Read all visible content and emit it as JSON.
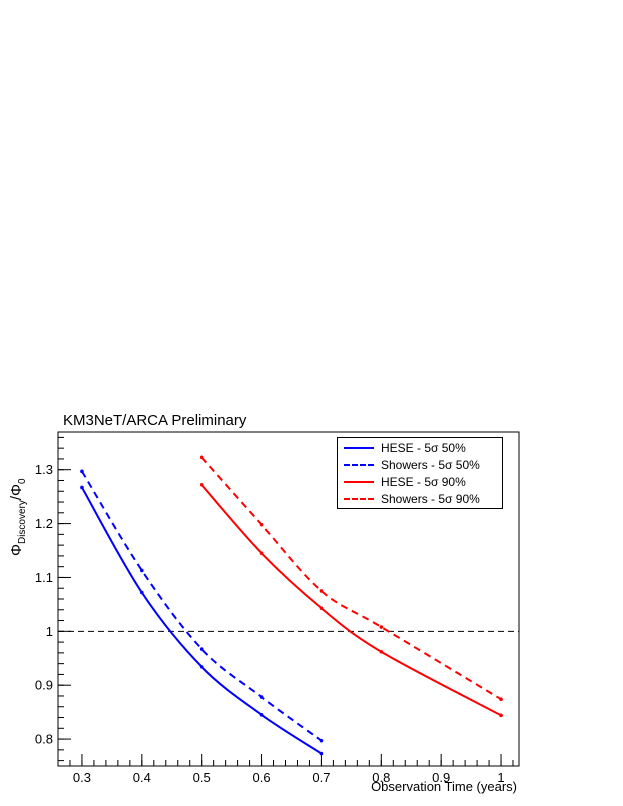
{
  "chart_data": {
    "type": "line",
    "title": "KM3NeT/ARCA Preliminary",
    "xlabel": "Observation Time (years)",
    "ylabel_main": "Φ",
    "ylabel_sub1": "Discovery",
    "ylabel_sep": "/Φ",
    "ylabel_sub2": "0",
    "xlim": [
      0.26,
      1.03
    ],
    "ylim": [
      0.75,
      1.37
    ],
    "x_ticks": [
      0.3,
      0.4,
      0.5,
      0.6,
      0.7,
      0.8,
      0.9,
      1
    ],
    "x_tick_labels": [
      "0.3",
      "0.4",
      "0.5",
      "0.6",
      "0.7",
      "0.8",
      "0.9",
      "1"
    ],
    "y_ticks": [
      0.8,
      0.9,
      1.0,
      1.1,
      1.2,
      1.3
    ],
    "y_tick_labels": [
      "0.8",
      "0.9",
      "1",
      "1.1",
      "1.2",
      "1.3"
    ],
    "reference_line": 1.0,
    "grid": false,
    "legend_position": "top-right",
    "series": [
      {
        "name": "HESE - 5σ 50%",
        "color": "#0000ff",
        "dash": "solid",
        "x": [
          0.3,
          0.4,
          0.5,
          0.6,
          0.7
        ],
        "y": [
          1.267,
          1.072,
          0.934,
          0.845,
          0.773
        ]
      },
      {
        "name": "Showers - 5σ 50%",
        "color": "#0000ff",
        "dash": "dashed",
        "x": [
          0.3,
          0.4,
          0.5,
          0.6,
          0.7
        ],
        "y": [
          1.297,
          1.113,
          0.967,
          0.878,
          0.797
        ]
      },
      {
        "name": "HESE - 5σ 90%",
        "color": "#ff0000",
        "dash": "solid",
        "x": [
          0.5,
          0.6,
          0.7,
          0.8,
          1.0
        ],
        "y": [
          1.272,
          1.145,
          1.043,
          0.962,
          0.844
        ]
      },
      {
        "name": "Showers - 5σ 90%",
        "color": "#ff0000",
        "dash": "dashed",
        "x": [
          0.5,
          0.6,
          0.7,
          0.8,
          1.0
        ],
        "y": [
          1.323,
          1.198,
          1.075,
          1.008,
          0.874
        ]
      }
    ]
  }
}
